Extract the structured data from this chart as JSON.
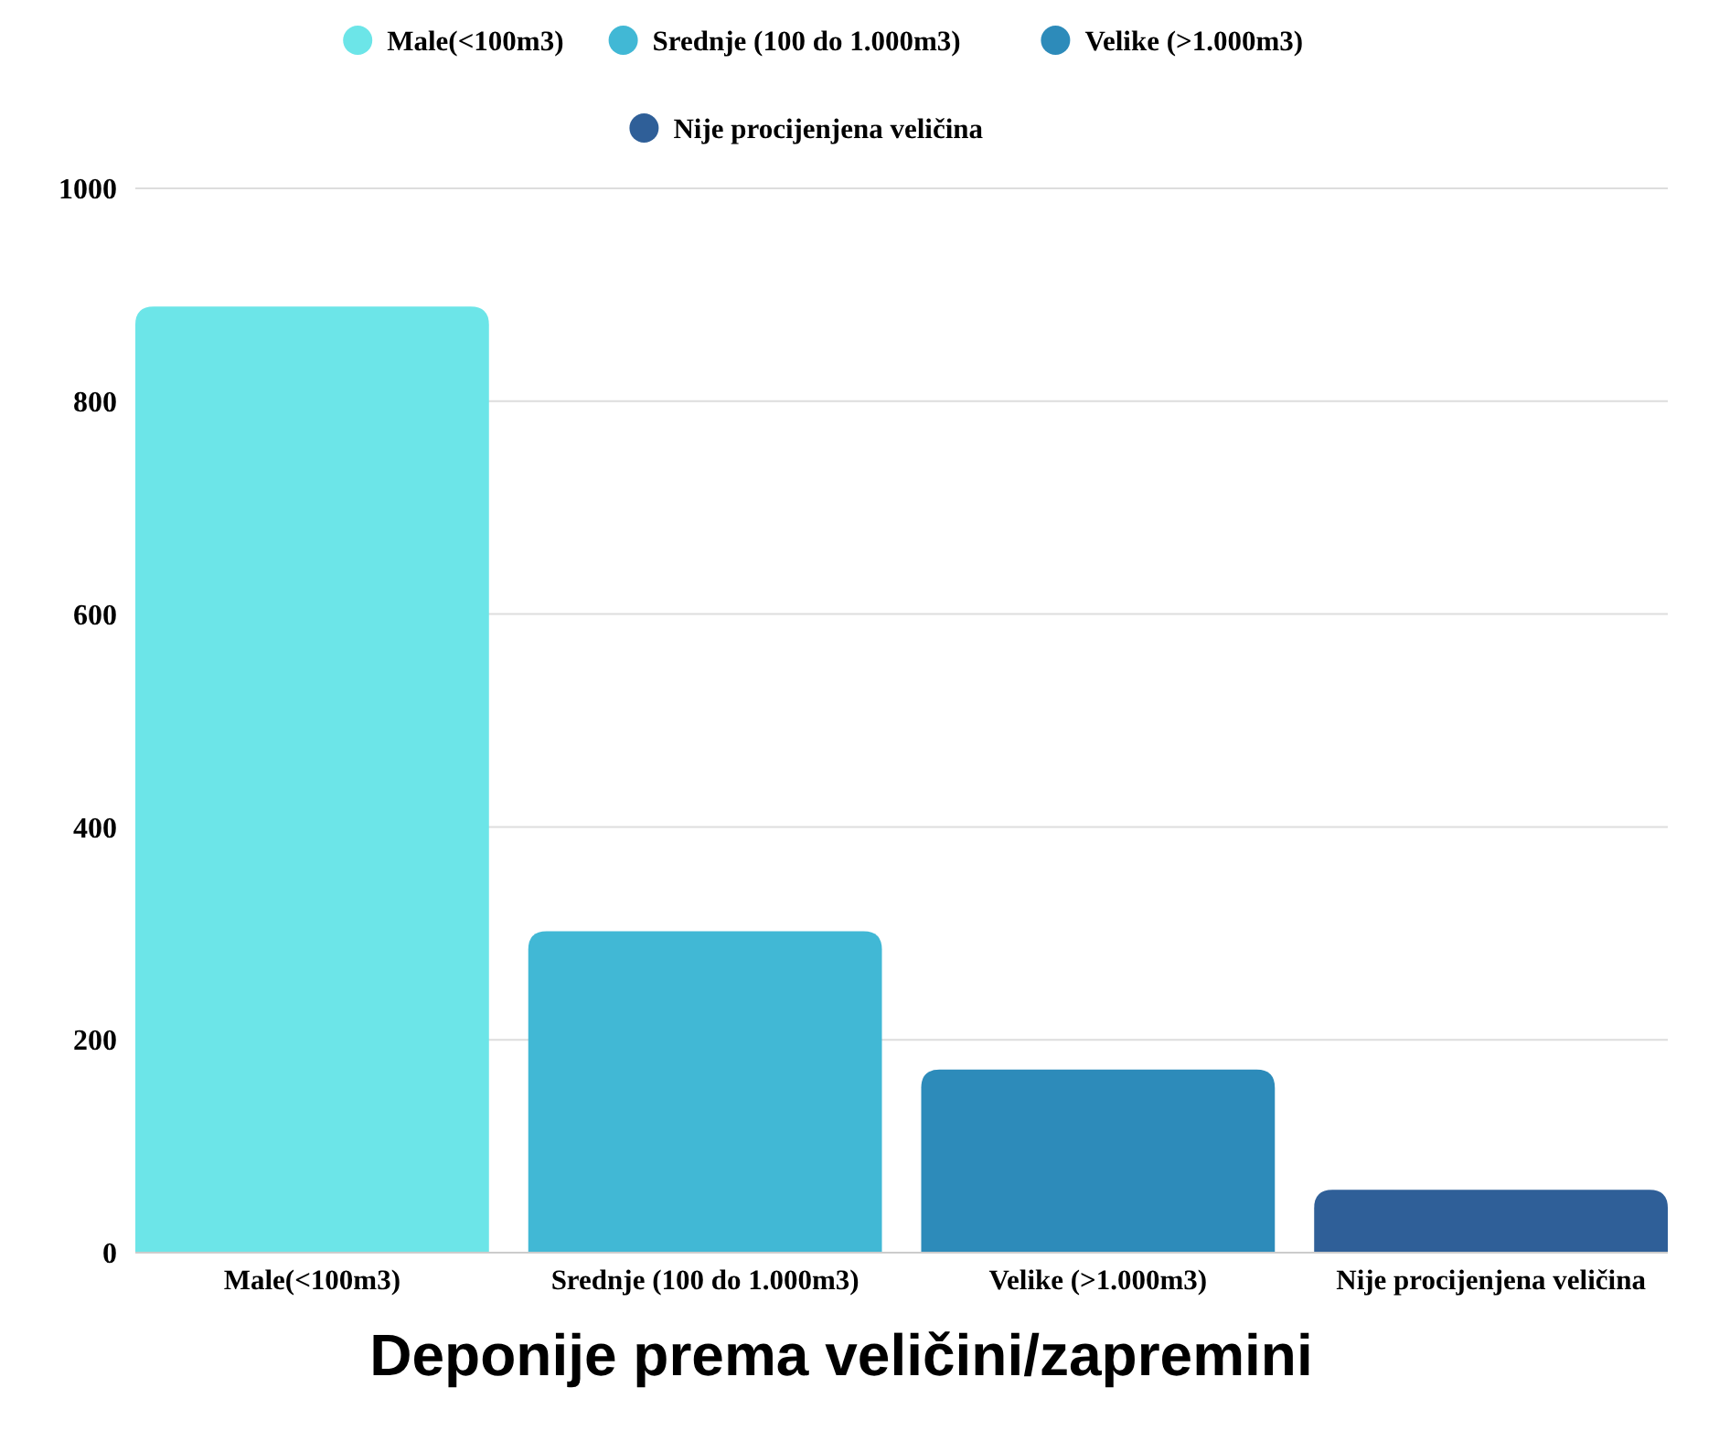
{
  "chart_data": {
    "type": "bar",
    "title": "Deponije prema veličini/zapremini",
    "categories": [
      "Male(<100m3)",
      "Srednje (100 do 1.000m3)",
      "Velike (>1.000m3)",
      "Nije procijenjena veličina"
    ],
    "series": [
      {
        "name": "Male(<100m3)",
        "color": "#6ce5e8",
        "values": [
          889,
          null,
          null,
          null
        ]
      },
      {
        "name": "Srednje (100 do 1.000m3)",
        "color": "#41b8d5",
        "values": [
          null,
          302,
          null,
          null
        ]
      },
      {
        "name": "Velike (>1.000m3)",
        "color": "#2d8bba",
        "values": [
          null,
          null,
          172,
          null
        ]
      },
      {
        "name": "Nije procijenjena veličina",
        "color": "#2f5f98",
        "values": [
          null,
          null,
          null,
          59
        ]
      }
    ],
    "ylim": [
      0,
      1000
    ],
    "yticks": [
      0,
      200,
      400,
      600,
      800,
      1000
    ],
    "grid": "y",
    "legend": "top"
  }
}
